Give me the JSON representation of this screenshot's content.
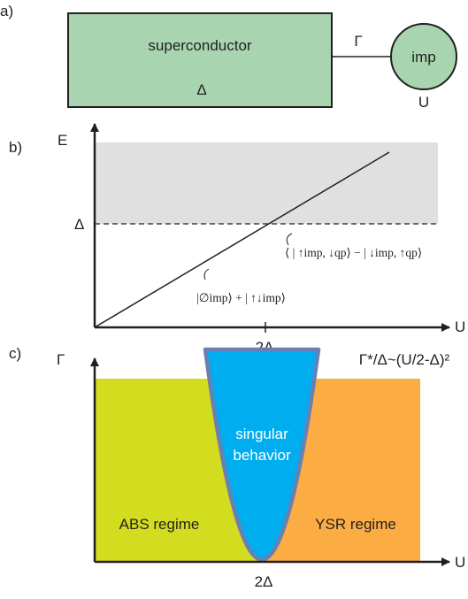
{
  "panel_a": {
    "tag": "a)",
    "box_label": "superconductor",
    "box_symbol": "Δ",
    "coupling": "Γ",
    "impurity": "imp",
    "interaction": "U",
    "colors": {
      "box": "#a8d5b0",
      "circle": "#a8d5b0"
    }
  },
  "panel_b": {
    "tag": "b)",
    "y_label": "E",
    "x_label": "U",
    "gap_tick": "Δ",
    "x_tick": "2Δ",
    "state_upper": "⟨ | ↑imp, ↓qp⟩ − | ↓imp, ↑qp⟩",
    "state_lower": "|∅imp⟩ + | ↑↓imp⟩",
    "colors": {
      "continuum": "#e0e0e0"
    }
  },
  "panel_c": {
    "tag": "c)",
    "y_label": "Γ",
    "x_label": "U",
    "x_tick": "2Δ",
    "region_left": "ABS regime",
    "region_center_line1": "singular",
    "region_center_line2": "behavior",
    "region_right": "YSR regime",
    "formula": "Γ*/Δ~(U/2-Δ)²",
    "colors": {
      "left": "#d3dc1e",
      "right": "#fbad44",
      "center": "#00aeef",
      "edge": "#6b7fb0"
    }
  }
}
